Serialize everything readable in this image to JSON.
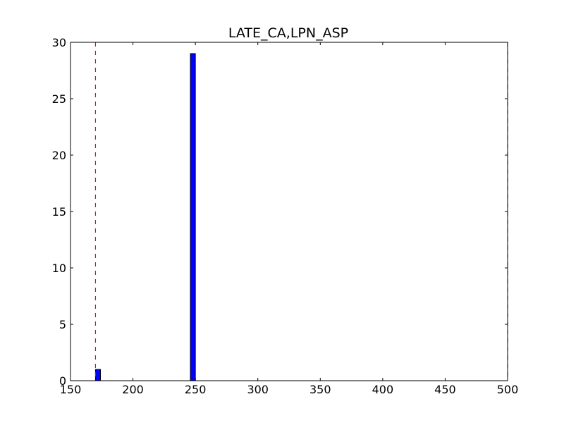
{
  "chart_data": {
    "type": "bar",
    "title": "LATE_CA,LPN_ASP",
    "xlabel": "",
    "ylabel": "",
    "xlim": [
      150,
      500
    ],
    "ylim": [
      0,
      30
    ],
    "xticks": [
      150,
      200,
      250,
      300,
      350,
      400,
      450,
      500
    ],
    "yticks": [
      0,
      5,
      10,
      15,
      20,
      25,
      30
    ],
    "xtick_labels": [
      "150",
      "200",
      "250",
      "300",
      "350",
      "400",
      "450",
      "500"
    ],
    "ytick_labels": [
      "0",
      "5",
      "10",
      "15",
      "20",
      "25",
      "30"
    ],
    "bar_color": "#0000ff",
    "bar_edge_color": "#000000",
    "bins": [
      {
        "x0": 170,
        "x1": 174,
        "count": 1
      },
      {
        "x0": 174,
        "x1": 178,
        "count": 0
      },
      {
        "x0": 178,
        "x1": 182,
        "count": 0
      },
      {
        "x0": 182,
        "x1": 186,
        "count": 0
      },
      {
        "x0": 186,
        "x1": 190,
        "count": 0
      },
      {
        "x0": 190,
        "x1": 194,
        "count": 0
      },
      {
        "x0": 194,
        "x1": 198,
        "count": 0
      },
      {
        "x0": 198,
        "x1": 202,
        "count": 0
      },
      {
        "x0": 202,
        "x1": 206,
        "count": 0
      },
      {
        "x0": 206,
        "x1": 210,
        "count": 0
      },
      {
        "x0": 210,
        "x1": 214,
        "count": 0
      },
      {
        "x0": 214,
        "x1": 218,
        "count": 0
      },
      {
        "x0": 218,
        "x1": 222,
        "count": 0
      },
      {
        "x0": 222,
        "x1": 226,
        "count": 0
      },
      {
        "x0": 226,
        "x1": 230,
        "count": 0
      },
      {
        "x0": 230,
        "x1": 234,
        "count": 0
      },
      {
        "x0": 234,
        "x1": 238,
        "count": 0
      },
      {
        "x0": 238,
        "x1": 242,
        "count": 0
      },
      {
        "x0": 242,
        "x1": 246,
        "count": 0
      },
      {
        "x0": 246,
        "x1": 250,
        "count": 29
      }
    ],
    "reference_lines": [
      {
        "x": 170,
        "color": "#ff0000",
        "style": "dashed"
      },
      {
        "x": 500,
        "color": "#ff0000",
        "style": "dashed"
      }
    ],
    "grid": false,
    "legend": "none"
  }
}
